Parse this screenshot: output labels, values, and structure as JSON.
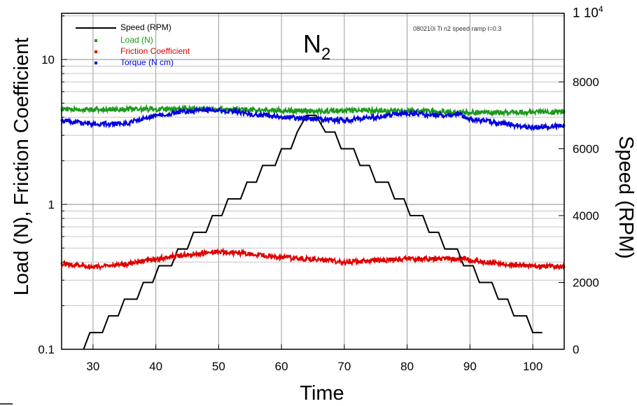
{
  "chart_data": {
    "type": "line",
    "title": "N",
    "title_subscript": "2",
    "annotation": "080210i Ti n2 speed ramp l=0.3",
    "xlabel": "Time",
    "ylabel_left": "Load (N), Friction Coefficient",
    "ylabel_right": "Speed (RPM)",
    "right_axis_exponent": "1 10",
    "right_axis_exponent_power": "4",
    "xlim": [
      25,
      105
    ],
    "ylim_left": [
      0.1,
      20
    ],
    "ylim_right": [
      0,
      10000
    ],
    "left_scale": "log",
    "grid": true,
    "x_ticks": [
      30,
      40,
      50,
      60,
      70,
      80,
      90,
      100
    ],
    "x_tick_labels": [
      "30",
      "40",
      "50",
      "60",
      "70",
      "80",
      "90",
      "100"
    ],
    "y_left_ticks": [
      0.1,
      1,
      10
    ],
    "y_left_tick_labels": [
      "0.1",
      "1",
      "10"
    ],
    "y_right_ticks": [
      0,
      2000,
      4000,
      6000,
      8000
    ],
    "y_right_tick_labels": [
      "0",
      "2000",
      "4000",
      "6000",
      "8000"
    ],
    "legend_position": "top-left",
    "series": [
      {
        "name": "Speed (RPM)",
        "axis": "right",
        "color": "#000000",
        "style": "line",
        "x": [
          28.5,
          29.5,
          31.5,
          32.5,
          34.0,
          35.0,
          37.0,
          38.0,
          39.5,
          40.5,
          42.5,
          43.5,
          45.0,
          46.0,
          48.0,
          49.0,
          50.5,
          51.5,
          53.5,
          54.5,
          56.0,
          57.0,
          59.0,
          60.0,
          61.5,
          62.5,
          64.0,
          65.5,
          67.0,
          68.5,
          69.5,
          71.5,
          72.5,
          74.0,
          75.0,
          77.0,
          78.0,
          79.5,
          80.5,
          82.5,
          83.5,
          85.0,
          86.0,
          88.0,
          89.0,
          90.5,
          91.5,
          93.5,
          94.5,
          96.0,
          97.0,
          99.0,
          100.0,
          101.5
        ],
        "y": [
          0,
          500,
          500,
          1000,
          1000,
          1500,
          1500,
          2000,
          2000,
          2500,
          2500,
          3000,
          3000,
          3500,
          3500,
          4000,
          4000,
          4500,
          4500,
          5000,
          5000,
          5500,
          5500,
          6000,
          6000,
          6500,
          7000,
          7000,
          6500,
          6500,
          6000,
          6000,
          5500,
          5500,
          5000,
          5000,
          4500,
          4500,
          4000,
          4000,
          3500,
          3500,
          3000,
          3000,
          2500,
          2500,
          2000,
          2000,
          1500,
          1500,
          1000,
          1000,
          500,
          500
        ]
      },
      {
        "name": "Load (N)",
        "axis": "left",
        "color": "#1a9a1a",
        "style": "points",
        "x": [
          25,
          35,
          45,
          55,
          65,
          75,
          85,
          95,
          105
        ],
        "y": [
          4.5,
          4.55,
          4.55,
          4.5,
          4.4,
          4.45,
          4.35,
          4.3,
          4.35
        ]
      },
      {
        "name": "Friction Coefficient",
        "axis": "left",
        "color": "#e00000",
        "style": "points",
        "x": [
          25,
          30,
          35,
          40,
          45,
          50,
          55,
          60,
          65,
          70,
          75,
          80,
          85,
          89,
          92,
          95,
          100,
          105
        ],
        "y": [
          0.39,
          0.37,
          0.385,
          0.42,
          0.45,
          0.47,
          0.455,
          0.43,
          0.42,
          0.4,
          0.41,
          0.42,
          0.42,
          0.42,
          0.4,
          0.39,
          0.375,
          0.37
        ]
      },
      {
        "name": "Torque (N cm)",
        "axis": "left",
        "color": "#0000dd",
        "style": "points",
        "x": [
          25,
          30,
          35,
          40,
          45,
          50,
          55,
          60,
          65,
          70,
          75,
          80,
          85,
          88,
          90,
          95,
          100,
          105
        ],
        "y": [
          3.8,
          3.6,
          3.6,
          4.1,
          4.4,
          4.5,
          4.2,
          4.0,
          3.9,
          3.8,
          4.0,
          4.25,
          4.1,
          4.2,
          3.9,
          3.6,
          3.4,
          3.5
        ]
      }
    ]
  }
}
